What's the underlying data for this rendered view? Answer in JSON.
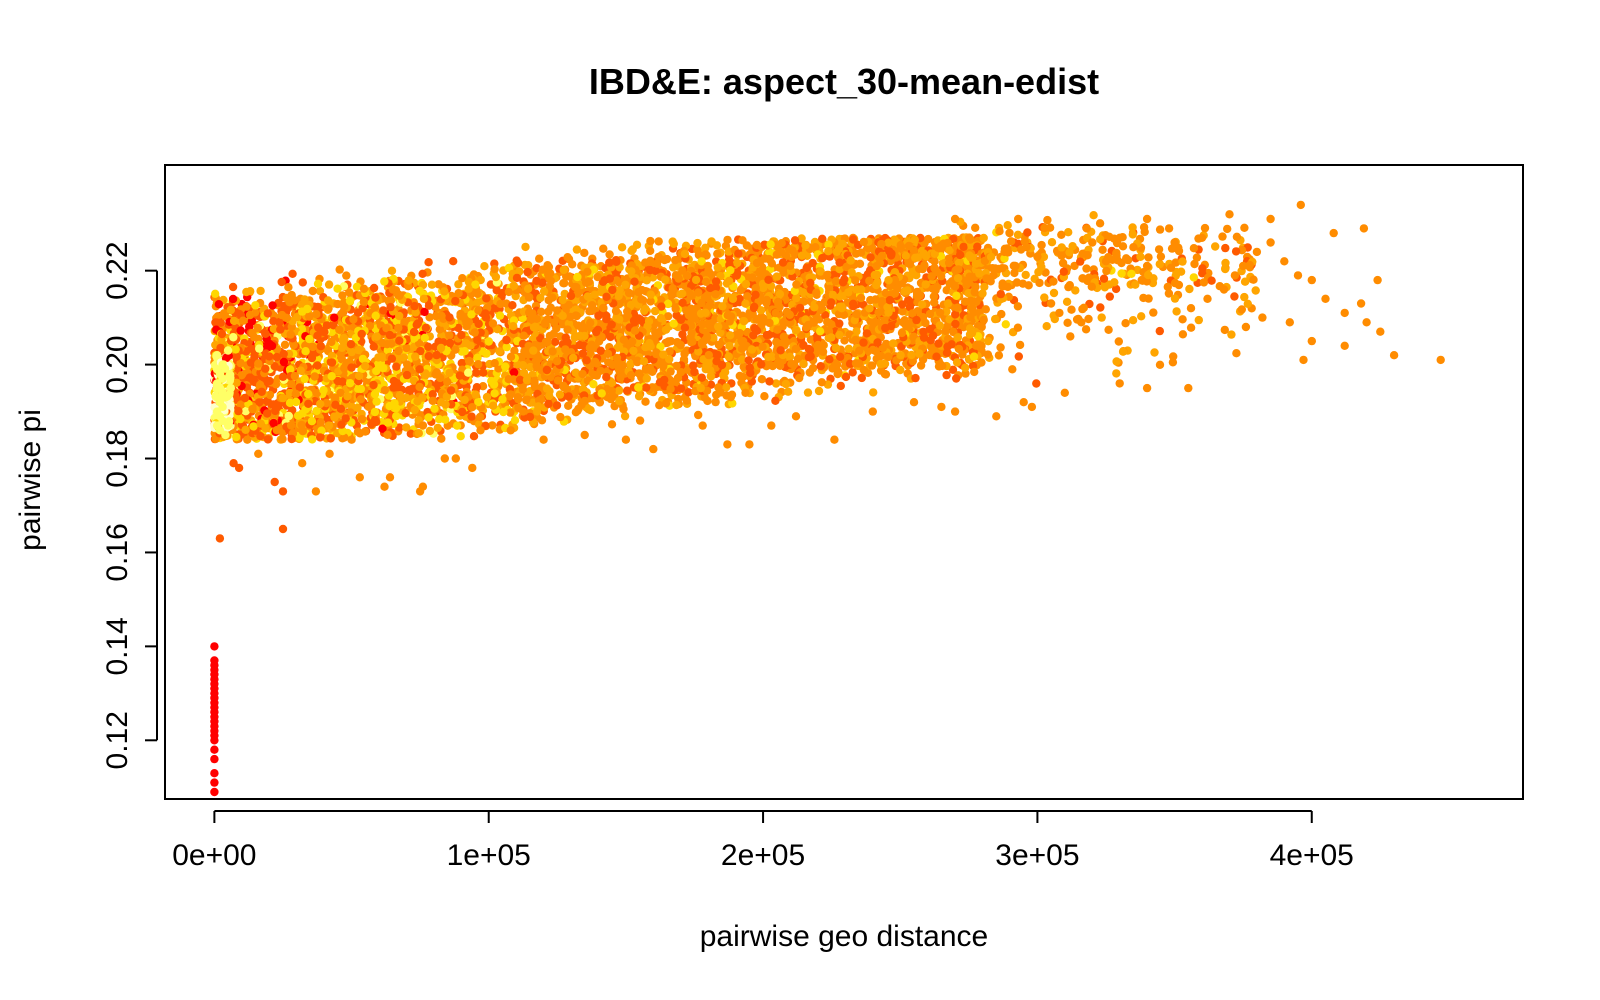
{
  "chart_data": {
    "type": "scatter",
    "title": "IBD&E: aspect_30-mean-edist",
    "xlabel": "pairwise geo distance",
    "ylabel": "pairwise pi",
    "xlim": [
      -18000,
      477000
    ],
    "ylim": [
      0.1075,
      0.2425
    ],
    "x_ticks": [
      0,
      100000,
      200000,
      300000,
      400000
    ],
    "x_tick_labels": [
      "0e+00",
      "1e+05",
      "2e+05",
      "3e+05",
      "4e+05"
    ],
    "y_ticks": [
      0.12,
      0.14,
      0.16,
      0.18,
      0.2,
      0.22
    ],
    "y_tick_labels": [
      "0.12",
      "0.14",
      "0.16",
      "0.18",
      "0.20",
      "0.22"
    ],
    "grid": false,
    "legend": "none",
    "color_scale": [
      "#ff0000",
      "#ff5a00",
      "#ff8c00",
      "#ffa500",
      "#ffd700",
      "#ffff66",
      "#ffffcc"
    ],
    "points": [
      [
        0,
        0.14
      ],
      [
        0,
        0.137
      ],
      [
        0,
        0.136
      ],
      [
        0,
        0.135
      ],
      [
        0,
        0.134
      ],
      [
        0,
        0.133
      ],
      [
        0,
        0.132
      ],
      [
        0,
        0.131
      ],
      [
        0,
        0.13
      ],
      [
        0,
        0.129
      ],
      [
        0,
        0.128
      ],
      [
        0,
        0.127
      ],
      [
        0,
        0.126
      ],
      [
        0,
        0.125
      ],
      [
        0,
        0.124
      ],
      [
        0,
        0.123
      ],
      [
        0,
        0.122
      ],
      [
        0,
        0.121
      ],
      [
        0,
        0.12
      ],
      [
        0,
        0.118
      ],
      [
        0,
        0.116
      ],
      [
        0,
        0.113
      ],
      [
        0,
        0.111
      ],
      [
        0,
        0.109
      ],
      [
        1000,
        0.187
      ],
      [
        1000,
        0.19
      ],
      [
        1000,
        0.193
      ],
      [
        1000,
        0.196
      ],
      [
        1000,
        0.199
      ],
      [
        1000,
        0.202
      ],
      [
        2000,
        0.186
      ],
      [
        2000,
        0.189
      ],
      [
        2000,
        0.192
      ],
      [
        2000,
        0.195
      ],
      [
        2000,
        0.198
      ],
      [
        3000,
        0.188
      ],
      [
        3000,
        0.191
      ],
      [
        3000,
        0.194
      ],
      [
        3000,
        0.197
      ],
      [
        3000,
        0.2
      ],
      [
        4000,
        0.185
      ],
      [
        4000,
        0.193
      ],
      [
        5000,
        0.203
      ],
      [
        5000,
        0.187
      ],
      [
        6000,
        0.195
      ],
      [
        2000,
        0.163
      ],
      [
        7000,
        0.179
      ],
      [
        9000,
        0.178
      ],
      [
        12000,
        0.184
      ],
      [
        16000,
        0.181
      ],
      [
        22000,
        0.175
      ],
      [
        25000,
        0.173
      ],
      [
        25000,
        0.165
      ],
      [
        32000,
        0.179
      ],
      [
        37000,
        0.173
      ],
      [
        42000,
        0.181
      ],
      [
        50000,
        0.184
      ],
      [
        53000,
        0.176
      ],
      [
        62000,
        0.174
      ],
      [
        64000,
        0.176
      ],
      [
        75000,
        0.173
      ],
      [
        76000,
        0.174
      ],
      [
        84000,
        0.18
      ],
      [
        88000,
        0.18
      ],
      [
        94000,
        0.178
      ],
      [
        97000,
        0.186
      ],
      [
        108000,
        0.186
      ],
      [
        120000,
        0.184
      ],
      [
        135000,
        0.185
      ],
      [
        150000,
        0.184
      ],
      [
        160000,
        0.182
      ],
      [
        178000,
        0.187
      ],
      [
        187000,
        0.183
      ],
      [
        195000,
        0.183
      ],
      [
        203000,
        0.187
      ],
      [
        212000,
        0.189
      ],
      [
        226000,
        0.184
      ],
      [
        240000,
        0.19
      ],
      [
        255000,
        0.192
      ],
      [
        265000,
        0.191
      ],
      [
        270000,
        0.19
      ],
      [
        285000,
        0.189
      ],
      [
        295000,
        0.192
      ],
      [
        298000,
        0.191
      ],
      [
        310000,
        0.194
      ],
      [
        330000,
        0.196
      ],
      [
        340000,
        0.195
      ],
      [
        355000,
        0.195
      ],
      [
        397000,
        0.201
      ],
      [
        430000,
        0.202
      ],
      [
        447000,
        0.201
      ],
      [
        425000,
        0.207
      ],
      [
        420000,
        0.209
      ],
      [
        418000,
        0.213
      ],
      [
        412000,
        0.211
      ],
      [
        405000,
        0.214
      ],
      [
        400000,
        0.218
      ],
      [
        395000,
        0.219
      ],
      [
        390000,
        0.222
      ],
      [
        385000,
        0.226
      ],
      [
        380000,
        0.224
      ],
      [
        375000,
        0.221
      ],
      [
        372000,
        0.219
      ],
      [
        368000,
        0.216
      ],
      [
        362000,
        0.214
      ],
      [
        356000,
        0.212
      ],
      [
        350000,
        0.226
      ],
      [
        348000,
        0.229
      ],
      [
        345000,
        0.223
      ],
      [
        340000,
        0.221
      ],
      [
        338000,
        0.218
      ],
      [
        335000,
        0.225
      ],
      [
        330000,
        0.227
      ],
      [
        325000,
        0.222
      ],
      [
        320000,
        0.226
      ],
      [
        316000,
        0.209
      ],
      [
        312000,
        0.206
      ],
      [
        308000,
        0.211
      ],
      [
        305000,
        0.213
      ],
      [
        300000,
        0.223
      ],
      [
        296000,
        0.225
      ],
      [
        292000,
        0.221
      ],
      [
        288000,
        0.224
      ],
      [
        284000,
        0.219
      ],
      [
        396000,
        0.234
      ],
      [
        370000,
        0.232
      ],
      [
        340000,
        0.231
      ],
      [
        318000,
        0.229
      ],
      [
        293000,
        0.231
      ],
      [
        270000,
        0.231
      ],
      [
        419000,
        0.229
      ],
      [
        408000,
        0.228
      ],
      [
        360000,
        0.227
      ],
      [
        385000,
        0.231
      ],
      [
        424000,
        0.218
      ],
      [
        412000,
        0.204
      ],
      [
        400000,
        0.205
      ],
      [
        392000,
        0.209
      ],
      [
        382000,
        0.21
      ],
      [
        376000,
        0.208
      ]
    ]
  }
}
